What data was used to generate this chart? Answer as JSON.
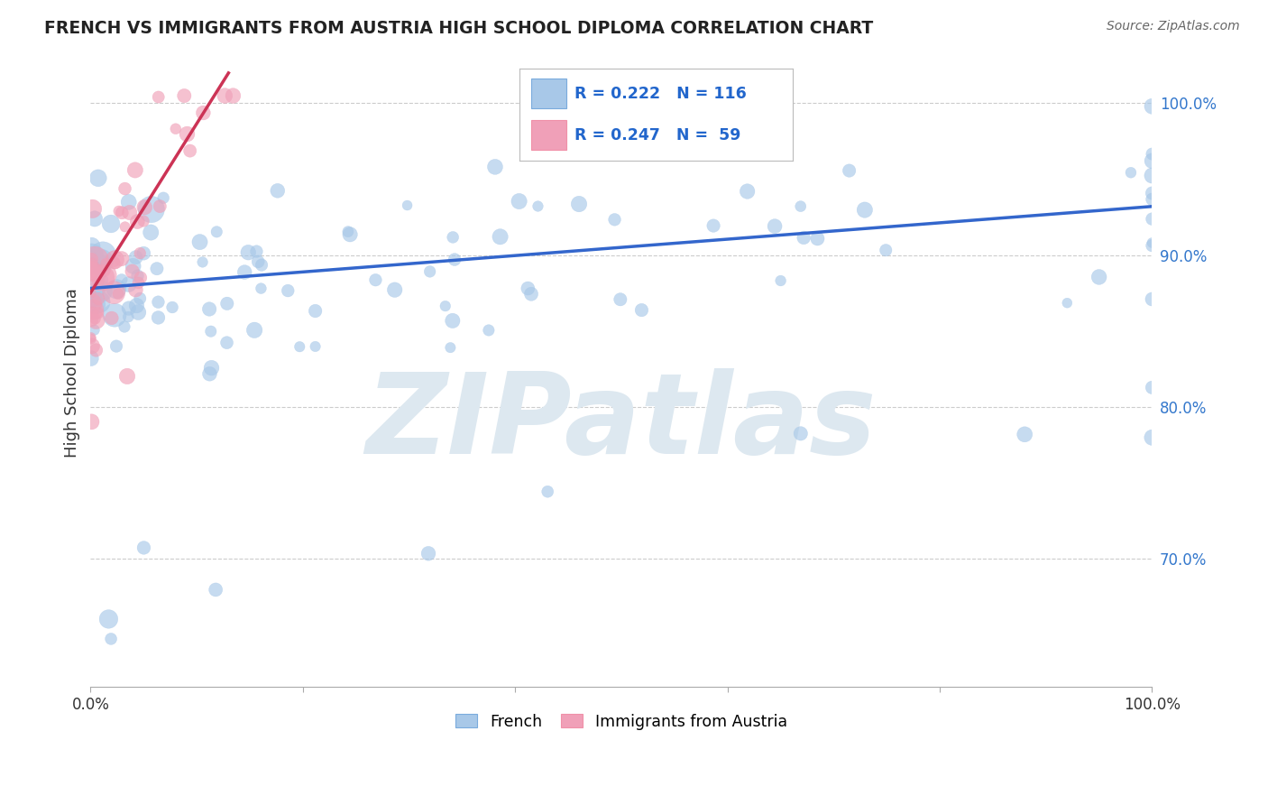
{
  "title": "FRENCH VS IMMIGRANTS FROM AUSTRIA HIGH SCHOOL DIPLOMA CORRELATION CHART",
  "source": "Source: ZipAtlas.com",
  "ylabel": "High School Diploma",
  "french_R": 0.222,
  "french_N": 116,
  "austria_R": 0.247,
  "austria_N": 59,
  "blue_color": "#a8c8e8",
  "pink_color": "#f0a0b8",
  "blue_line_color": "#3366cc",
  "pink_line_color": "#cc3355",
  "watermark": "ZIPatlas",
  "watermark_color": "#dde8f0",
  "legend_text_color": "#2266cc",
  "title_color": "#222222",
  "grid_color": "#cccccc",
  "background_color": "#ffffff",
  "blue_line_x0": 0.0,
  "blue_line_y0": 0.878,
  "blue_line_x1": 100.0,
  "blue_line_y1": 0.932,
  "pink_line_x0": 0.0,
  "pink_line_y0": 0.875,
  "pink_line_x1": 13.0,
  "pink_line_y1": 1.02,
  "dot_size": 120,
  "xlim": [
    0.0,
    100.0
  ],
  "ylim": [
    0.615,
    1.03
  ]
}
